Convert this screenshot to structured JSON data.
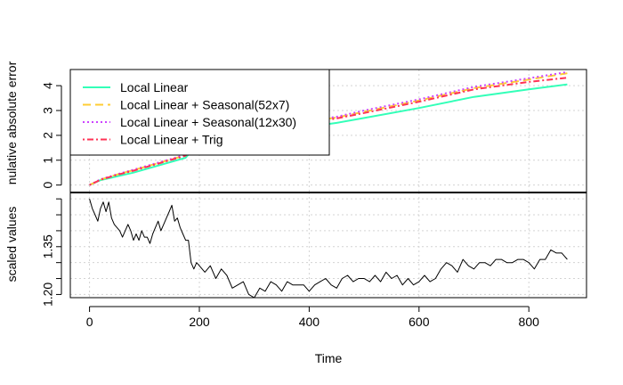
{
  "chart_data": [
    {
      "type": "line",
      "panel": "top",
      "ylabel": "nulative absolute error",
      "ylim": [
        -0.3,
        4.65
      ],
      "yticks": [
        "0",
        "1",
        "2",
        "3",
        "4"
      ],
      "grid": true,
      "legend_position": "top-left",
      "series": [
        {
          "name": "Local Linear",
          "color": "#33FFB8",
          "dash": "solid",
          "x": [
            0,
            20,
            50,
            80,
            120,
            175,
            185,
            220,
            300,
            400,
            450,
            500,
            600,
            700,
            800,
            870
          ],
          "y": [
            0,
            0.2,
            0.35,
            0.5,
            0.75,
            1.1,
            1.35,
            1.6,
            2.05,
            2.35,
            2.5,
            2.7,
            3.1,
            3.55,
            3.85,
            4.05
          ]
        },
        {
          "name": "Local Linear + Seasonal(52x7)",
          "color": "#FFCC33",
          "dash": "long-dash",
          "x": [
            0,
            20,
            50,
            80,
            120,
            175,
            185,
            220,
            300,
            400,
            450,
            500,
            600,
            700,
            800,
            870
          ],
          "y": [
            0,
            0.22,
            0.42,
            0.6,
            0.85,
            1.2,
            1.45,
            1.72,
            2.2,
            2.55,
            2.72,
            2.95,
            3.4,
            3.9,
            4.25,
            4.5
          ]
        },
        {
          "name": "Local Linear + Seasonal(12x30)",
          "color": "#CC44FF",
          "dash": "dotted",
          "x": [
            0,
            20,
            50,
            80,
            120,
            175,
            185,
            220,
            300,
            400,
            450,
            500,
            600,
            700,
            800,
            870
          ],
          "y": [
            0,
            0.23,
            0.43,
            0.62,
            0.87,
            1.22,
            1.47,
            1.75,
            2.22,
            2.6,
            2.75,
            3.0,
            3.45,
            3.95,
            4.3,
            4.55
          ]
        },
        {
          "name": "Local Linear + Trig",
          "color": "#FF3355",
          "dash": "dot-dash",
          "x": [
            0,
            20,
            50,
            80,
            120,
            175,
            185,
            220,
            300,
            400,
            450,
            500,
            600,
            700,
            800,
            870
          ],
          "y": [
            0,
            0.21,
            0.41,
            0.58,
            0.83,
            1.18,
            1.43,
            1.7,
            2.17,
            2.52,
            2.68,
            2.9,
            3.35,
            3.85,
            4.15,
            4.32
          ]
        }
      ]
    },
    {
      "type": "line",
      "panel": "bottom",
      "xlabel": "Time",
      "ylabel": "scaled values",
      "xlim": [
        -35,
        905
      ],
      "xticks": [
        "0",
        "200",
        "400",
        "600",
        "800"
      ],
      "ylim": [
        1.19,
        1.52
      ],
      "yticks": [
        "1.20",
        "1.35"
      ],
      "grid": true,
      "series": [
        {
          "name": "",
          "color": "#000000",
          "dash": "solid",
          "x": [
            0,
            5,
            10,
            15,
            20,
            25,
            30,
            35,
            40,
            45,
            50,
            55,
            60,
            65,
            70,
            75,
            80,
            85,
            90,
            95,
            100,
            105,
            110,
            115,
            120,
            125,
            130,
            135,
            140,
            145,
            150,
            155,
            160,
            165,
            170,
            175,
            180,
            185,
            190,
            195,
            200,
            210,
            220,
            230,
            240,
            250,
            260,
            270,
            280,
            290,
            300,
            310,
            320,
            330,
            340,
            350,
            360,
            370,
            380,
            390,
            400,
            410,
            420,
            430,
            440,
            450,
            460,
            470,
            480,
            490,
            500,
            510,
            520,
            530,
            540,
            550,
            560,
            570,
            580,
            590,
            600,
            610,
            620,
            630,
            640,
            650,
            660,
            670,
            680,
            690,
            700,
            710,
            720,
            730,
            740,
            750,
            760,
            770,
            780,
            790,
            800,
            810,
            820,
            830,
            840,
            850,
            860,
            870
          ],
          "y": [
            1.5,
            1.47,
            1.45,
            1.43,
            1.47,
            1.49,
            1.46,
            1.49,
            1.44,
            1.42,
            1.41,
            1.4,
            1.38,
            1.4,
            1.42,
            1.4,
            1.37,
            1.39,
            1.37,
            1.4,
            1.38,
            1.38,
            1.36,
            1.39,
            1.41,
            1.43,
            1.4,
            1.42,
            1.44,
            1.46,
            1.48,
            1.43,
            1.44,
            1.41,
            1.39,
            1.37,
            1.37,
            1.3,
            1.28,
            1.3,
            1.29,
            1.27,
            1.29,
            1.25,
            1.28,
            1.26,
            1.22,
            1.23,
            1.24,
            1.2,
            1.19,
            1.22,
            1.21,
            1.24,
            1.23,
            1.21,
            1.24,
            1.23,
            1.23,
            1.23,
            1.21,
            1.23,
            1.24,
            1.25,
            1.23,
            1.22,
            1.25,
            1.26,
            1.24,
            1.25,
            1.25,
            1.24,
            1.26,
            1.24,
            1.27,
            1.25,
            1.26,
            1.23,
            1.25,
            1.23,
            1.24,
            1.26,
            1.24,
            1.25,
            1.28,
            1.3,
            1.29,
            1.27,
            1.31,
            1.29,
            1.28,
            1.3,
            1.3,
            1.29,
            1.31,
            1.31,
            1.3,
            1.3,
            1.31,
            1.31,
            1.3,
            1.28,
            1.31,
            1.31,
            1.34,
            1.33,
            1.33,
            1.31
          ]
        }
      ]
    }
  ]
}
